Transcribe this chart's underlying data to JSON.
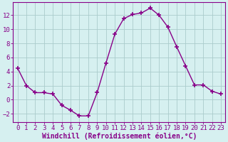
{
  "x": [
    0,
    1,
    2,
    3,
    4,
    5,
    6,
    7,
    8,
    9,
    10,
    11,
    12,
    13,
    14,
    15,
    16,
    17,
    18,
    19,
    20,
    21,
    22,
    23
  ],
  "y": [
    4.5,
    2.0,
    1.0,
    1.0,
    0.8,
    -0.8,
    -1.5,
    -2.3,
    -2.3,
    1.0,
    5.2,
    9.3,
    11.5,
    12.1,
    12.3,
    13.0,
    12.0,
    10.3,
    7.5,
    4.8,
    2.1,
    2.1,
    1.2,
    0.8
  ],
  "line_color": "#880088",
  "marker": "+",
  "marker_size": 4,
  "marker_lw": 1.2,
  "bg_color": "#d6f0f0",
  "grid_color": "#aacccc",
  "axis_color": "#880088",
  "tick_color": "#880088",
  "xlabel": "Windchill (Refroidissement éolien,°C)",
  "xlabel_color": "#880088",
  "xlim": [
    -0.5,
    23.5
  ],
  "ylim": [
    -3.2,
    13.8
  ],
  "yticks": [
    -2,
    0,
    2,
    4,
    6,
    8,
    10,
    12
  ],
  "xticks": [
    0,
    1,
    2,
    3,
    4,
    5,
    6,
    7,
    8,
    9,
    10,
    11,
    12,
    13,
    14,
    15,
    16,
    17,
    18,
    19,
    20,
    21,
    22,
    23
  ],
  "font_size": 6.5,
  "xlabel_fontsize": 7.0,
  "line_width": 1.0
}
